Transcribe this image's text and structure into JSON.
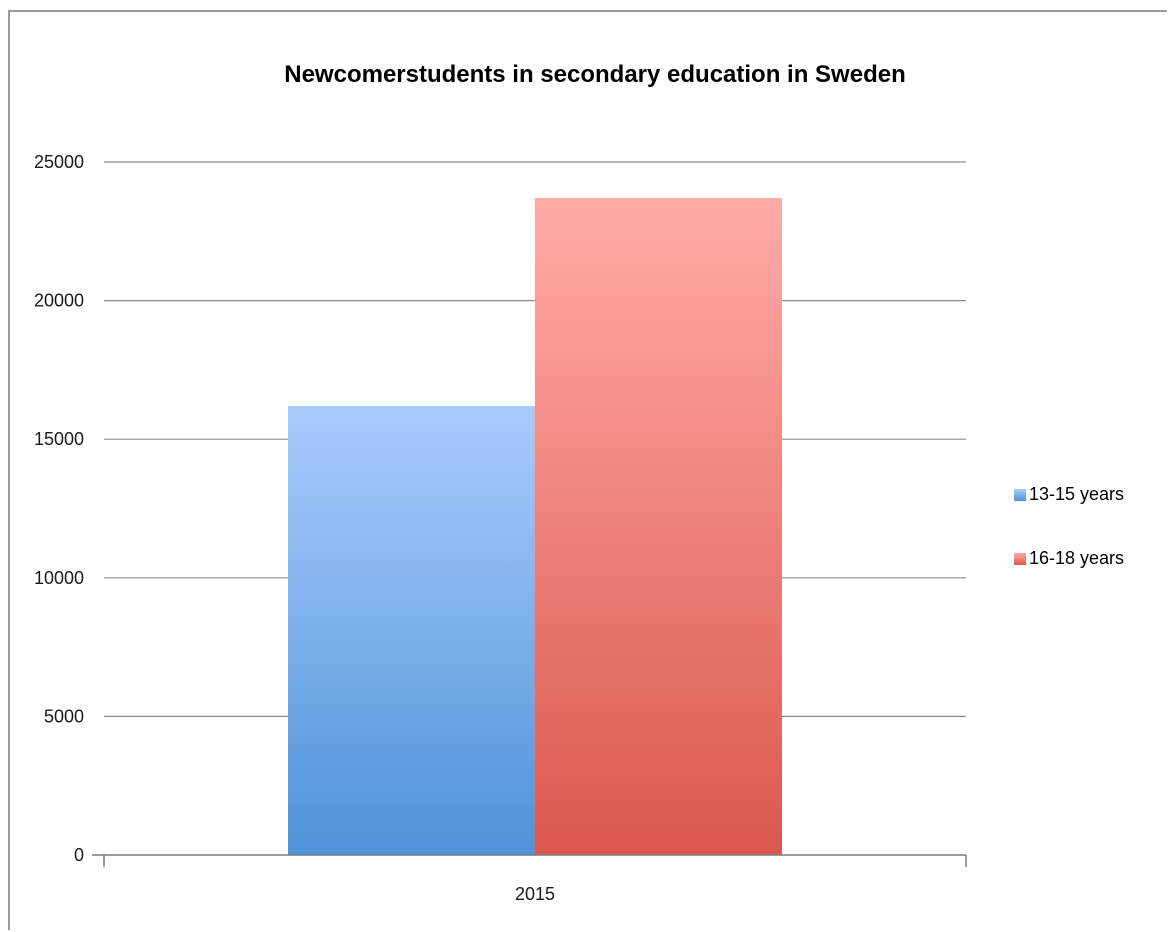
{
  "chart_data": {
    "type": "bar",
    "title": "Newcomerstudents in secondary education in Sweden",
    "xlabel": "",
    "ylabel": "",
    "categories": [
      "2015"
    ],
    "series": [
      {
        "name": "13-15 years",
        "values": [
          16200
        ],
        "color_top": "#a9cbfb",
        "color_bottom": "#4f93d9"
      },
      {
        "name": "16-18 years",
        "values": [
          23700
        ],
        "color_top": "#ffaba7",
        "color_bottom": "#db584d"
      }
    ],
    "ylim": [
      0,
      25000
    ],
    "yticks": [
      "0",
      "5000",
      "10000",
      "15000",
      "20000",
      "25000"
    ],
    "grid": true,
    "legend_position": "right"
  }
}
